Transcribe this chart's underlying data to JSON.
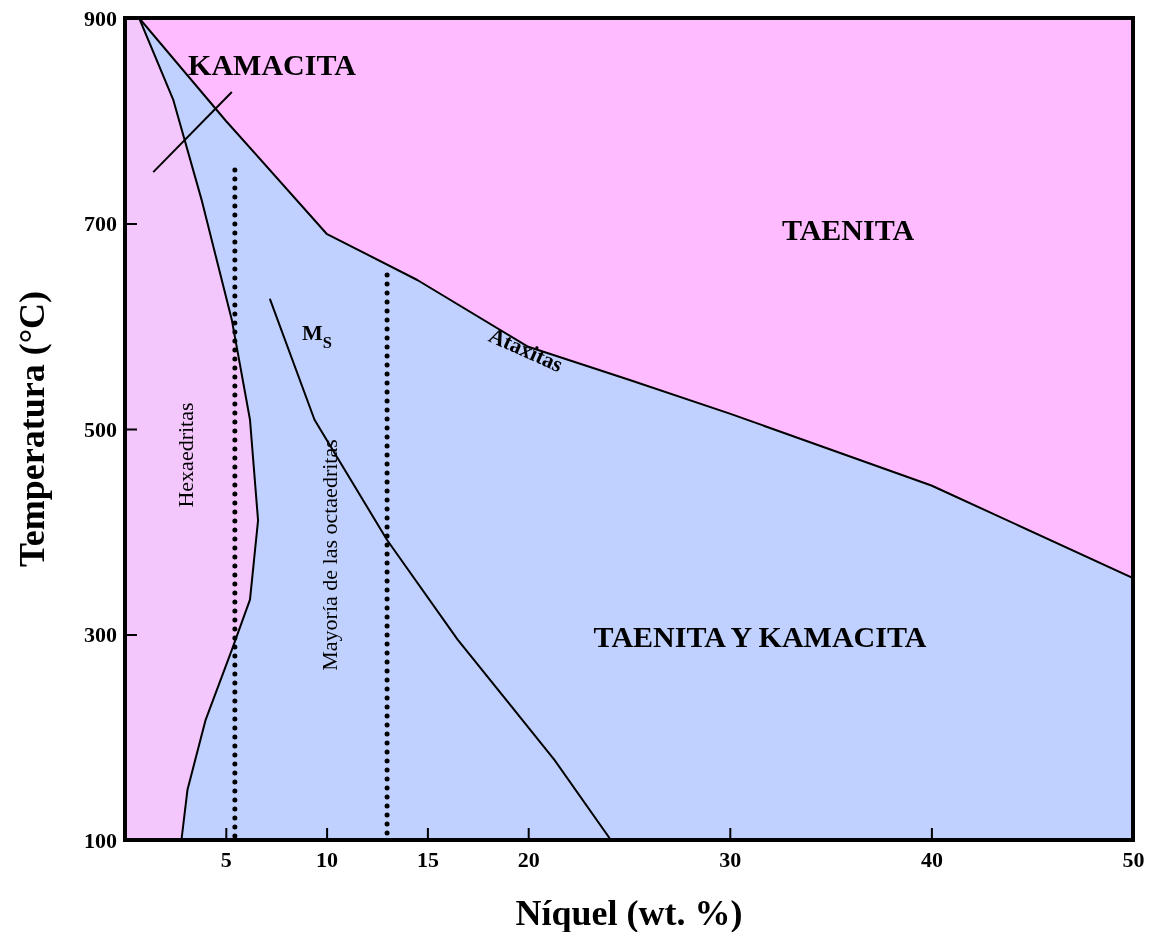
{
  "chart_data": {
    "type": "area",
    "xlabel": "Níquel (wt. %)",
    "ylabel": "Temperatura (°C)",
    "xlim": [
      0,
      50
    ],
    "ylim": [
      100,
      900
    ],
    "xticks": [
      5,
      10,
      15,
      20,
      30,
      40,
      50
    ],
    "yticks": [
      100,
      300,
      500,
      700,
      900
    ],
    "grid": false,
    "marker": "none",
    "bands": [
      {
        "axis": "y",
        "from": 100,
        "to": 900,
        "color": "#ffbbff"
      }
    ],
    "series": [
      {
        "color": "#c0d0ff",
        "x": [
          0.7,
          5,
          10,
          14.5,
          20,
          25,
          30,
          40,
          50
        ],
        "values": [
          900,
          800,
          690,
          645,
          580,
          548,
          515,
          445,
          355
        ]
      },
      {
        "color": "#f3c6fc",
        "x": [
          0,
          0.7,
          2.4,
          3.8,
          5.3,
          6.2,
          6.6,
          6.2,
          5.3,
          4.0,
          3.1,
          2.8
        ],
        "values": [
          900,
          900,
          820,
          723,
          606,
          509,
          411,
          334,
          285,
          217,
          149,
          100
        ]
      },
      {
        "type": "line",
        "color": "#000000",
        "x": [
          7.2,
          9.4,
          13,
          16.5,
          21.3,
          24.1
        ],
        "values": [
          626,
          509,
          392,
          295,
          178,
          100
        ]
      },
      {
        "type": "line",
        "color": "#000000",
        "line_style": "dotted",
        "x": [
          5.45,
          5.45
        ],
        "values": [
          752,
          100
        ]
      },
      {
        "type": "line",
        "color": "#000000",
        "line_style": "dotted",
        "x": [
          13,
          13
        ],
        "values": [
          650,
          100
        ]
      }
    ],
    "annotations": [
      "KAMACITA",
      "TAENITA",
      "TAENITA Y KAMACITA",
      "Ataxitas",
      "Hexaedritas",
      "Mayoría de las octaedritas",
      "M$_{S}$"
    ]
  }
}
